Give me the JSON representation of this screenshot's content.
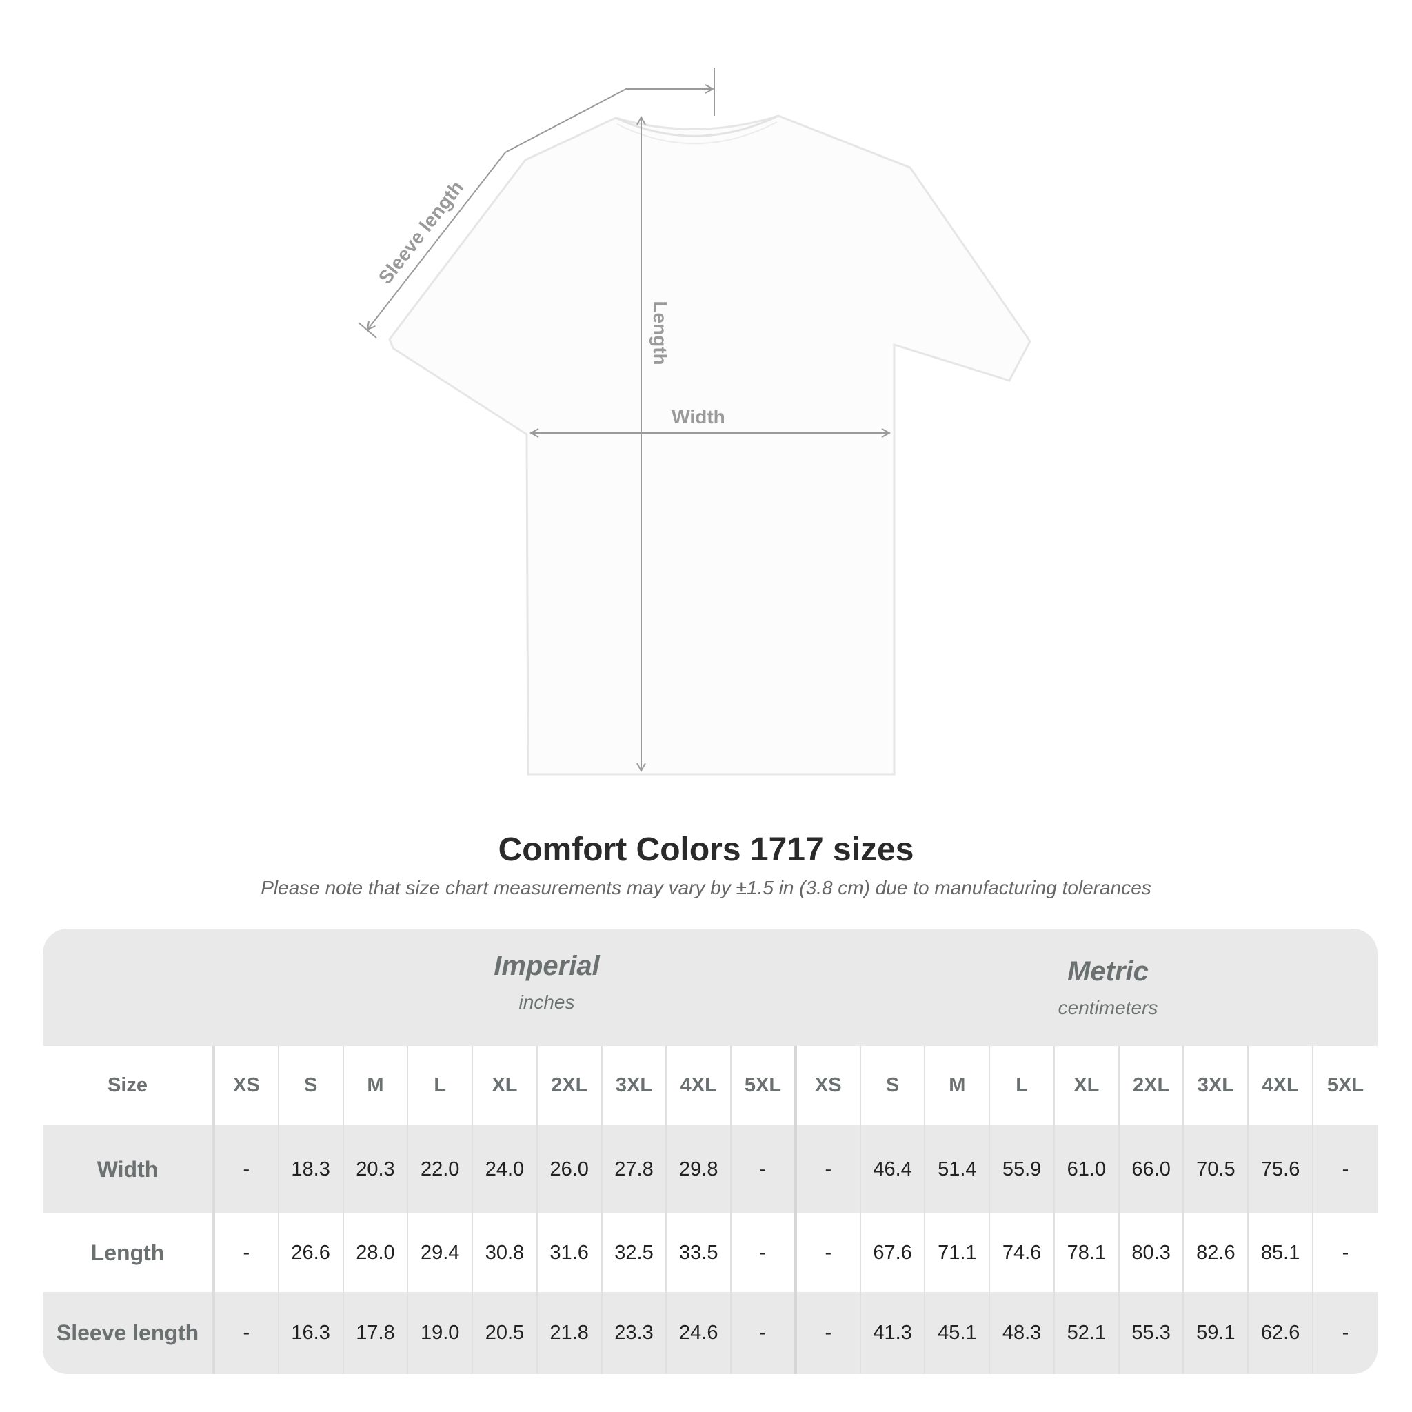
{
  "diagram": {
    "labels": {
      "sleeve": "Sleeve length",
      "length": "Length",
      "width": "Width"
    },
    "line_color": "#9a9a9a"
  },
  "title": "Comfort Colors 1717 sizes",
  "subtitle": "Please note that size chart measurements may vary by ±1.5 in (3.8 cm) due to manufacturing tolerances",
  "table": {
    "imperial": {
      "label": "Imperial",
      "unit": "inches"
    },
    "metric": {
      "label": "Metric",
      "unit": "centimeters"
    },
    "size_label": "Size",
    "sizes": [
      "XS",
      "S",
      "M",
      "L",
      "XL",
      "2XL",
      "3XL",
      "4XL",
      "5XL"
    ],
    "rows": [
      {
        "label": "Width",
        "imperial": [
          "-",
          "18.3",
          "20.3",
          "22.0",
          "24.0",
          "26.0",
          "27.8",
          "29.8",
          "-"
        ],
        "metric": [
          "-",
          "46.4",
          "51.4",
          "55.9",
          "61.0",
          "66.0",
          "70.5",
          "75.6",
          "-"
        ]
      },
      {
        "label": "Length",
        "imperial": [
          "-",
          "26.6",
          "28.0",
          "29.4",
          "30.8",
          "31.6",
          "32.5",
          "33.5",
          "-"
        ],
        "metric": [
          "-",
          "67.6",
          "71.1",
          "74.6",
          "78.1",
          "80.3",
          "82.6",
          "85.1",
          "-"
        ]
      },
      {
        "label": "Sleeve length",
        "imperial": [
          "-",
          "16.3",
          "17.8",
          "19.0",
          "20.5",
          "21.8",
          "23.3",
          "24.6",
          "-"
        ],
        "metric": [
          "-",
          "41.3",
          "45.1",
          "48.3",
          "52.1",
          "55.3",
          "59.1",
          "62.6",
          "-"
        ]
      }
    ]
  }
}
